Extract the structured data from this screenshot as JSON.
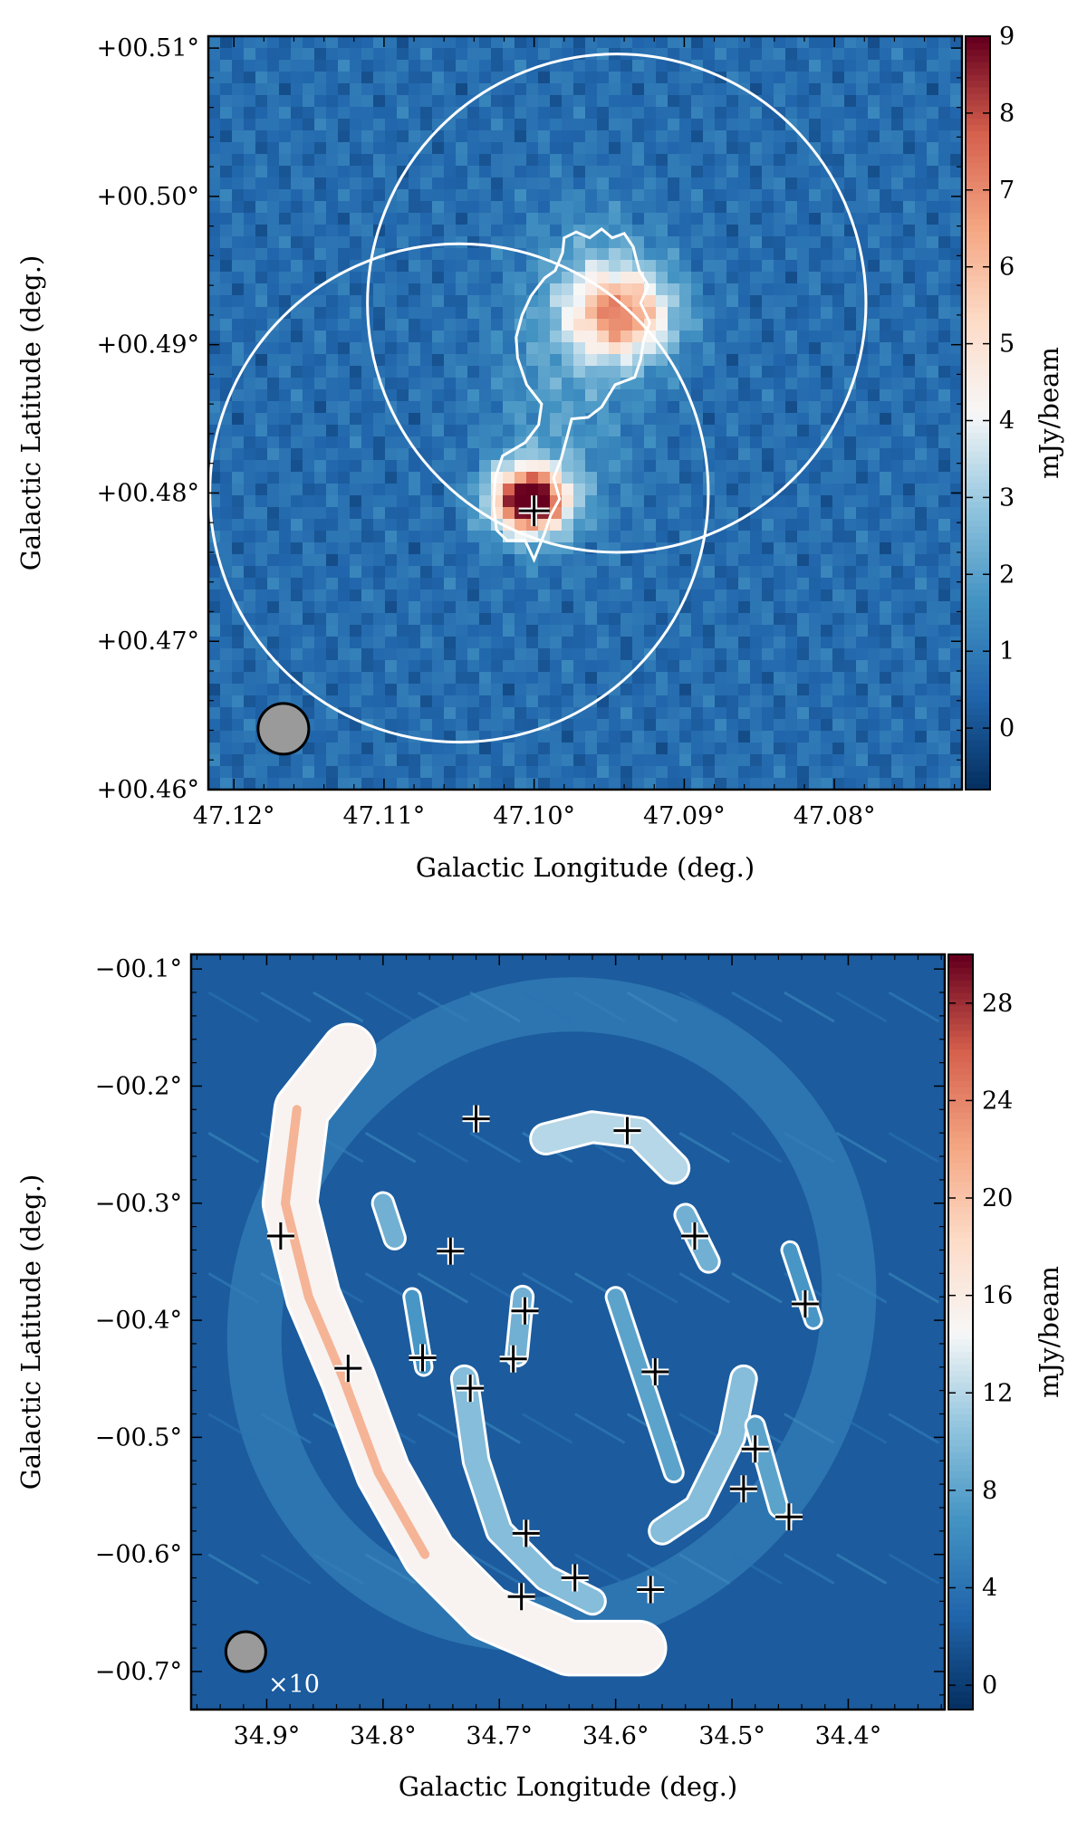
{
  "chart_data": [
    {
      "type": "heatmap",
      "panel": "top",
      "xlabel": "Galactic Longitude (deg.)",
      "ylabel": "Galactic Latitude (deg.)",
      "xlim": [
        47.1217,
        47.0715
      ],
      "ylim": [
        0.46,
        0.5108
      ],
      "xticks": [
        47.12,
        47.11,
        47.1,
        47.09,
        47.08
      ],
      "xtick_labels": [
        "47.12°",
        "47.11°",
        "47.10°",
        "47.09°",
        "47.08°"
      ],
      "yticks": [
        0.46,
        0.47,
        0.48,
        0.49,
        0.5,
        0.51
      ],
      "ytick_labels": [
        "+00.46°",
        "+00.47°",
        "+00.48°",
        "+00.49°",
        "+00.50°",
        "+00.51°"
      ],
      "colorbar": {
        "label": "mJy/beam",
        "range": [
          -0.8,
          9.0
        ],
        "ticks": [
          0,
          1,
          2,
          3,
          4,
          5,
          6,
          7,
          8,
          9
        ],
        "tick_labels": [
          "0",
          "1",
          "2",
          "3",
          "4",
          "5",
          "6",
          "7",
          "8",
          "9"
        ],
        "colormap": "RdBu_r"
      },
      "background_level": 0.6,
      "sources": [
        {
          "l": 47.0942,
          "b": 0.492,
          "peak": 6.0,
          "sigma_l": 0.0025,
          "sigma_b": 0.0022
        },
        {
          "l": 47.1003,
          "b": 0.4795,
          "peak": 9.5,
          "sigma_l": 0.0018,
          "sigma_b": 0.0016
        },
        {
          "l": 47.098,
          "b": 0.486,
          "peak": 1.2,
          "sigma_l": 0.0035,
          "sigma_b": 0.006
        },
        {
          "l": 47.096,
          "b": 0.496,
          "peak": 0.9,
          "sigma_l": 0.003,
          "sigma_b": 0.003
        }
      ],
      "circles": [
        {
          "l": 47.0945,
          "b": 0.4928,
          "r_deg": 0.0168
        },
        {
          "l": 47.105,
          "b": 0.48,
          "r_deg": 0.0168
        }
      ],
      "contour_outline": [
        [
          47.0972,
          0.4976
        ],
        [
          47.0963,
          0.4972
        ],
        [
          47.0955,
          0.4978
        ],
        [
          47.0948,
          0.4972
        ],
        [
          47.094,
          0.4975
        ],
        [
          47.0934,
          0.4966
        ],
        [
          47.093,
          0.495
        ],
        [
          47.0924,
          0.494
        ],
        [
          47.0929,
          0.4928
        ],
        [
          47.0923,
          0.4915
        ],
        [
          47.0927,
          0.4903
        ],
        [
          47.0929,
          0.489
        ],
        [
          47.0933,
          0.4878
        ],
        [
          47.0946,
          0.4873
        ],
        [
          47.0955,
          0.4858
        ],
        [
          47.0964,
          0.4851
        ],
        [
          47.0975,
          0.485
        ],
        [
          47.0978,
          0.4838
        ],
        [
          47.0982,
          0.4823
        ],
        [
          47.0987,
          0.481
        ],
        [
          47.0983,
          0.4796
        ],
        [
          47.0989,
          0.4785
        ],
        [
          47.0993,
          0.4773
        ],
        [
          47.1,
          0.4755
        ],
        [
          47.1006,
          0.4768
        ],
        [
          47.1018,
          0.4768
        ],
        [
          47.1025,
          0.4775
        ],
        [
          47.1027,
          0.4792
        ],
        [
          47.1026,
          0.481
        ],
        [
          47.1021,
          0.4825
        ],
        [
          47.1006,
          0.4834
        ],
        [
          47.0997,
          0.4846
        ],
        [
          47.0995,
          0.486
        ],
        [
          47.1005,
          0.4873
        ],
        [
          47.1011,
          0.4891
        ],
        [
          47.1012,
          0.4905
        ],
        [
          47.1008,
          0.492
        ],
        [
          47.1002,
          0.4933
        ],
        [
          47.0993,
          0.4945
        ],
        [
          47.0986,
          0.495
        ],
        [
          47.0981,
          0.4962
        ],
        [
          47.098,
          0.4972
        ]
      ],
      "markers": [
        {
          "l": 47.1,
          "b": 0.4788
        }
      ],
      "beam": {
        "l": 47.1167,
        "b": 0.4641
      }
    },
    {
      "type": "heatmap",
      "panel": "bottom",
      "xlabel": "Galactic Longitude (deg.)",
      "ylabel": "Galactic Latitude (deg.)",
      "xlim": [
        34.965,
        34.317
      ],
      "ylim": [
        -0.7325,
        -0.0875
      ],
      "xticks": [
        34.9,
        34.8,
        34.7,
        34.6,
        34.5,
        34.4
      ],
      "xtick_labels": [
        "34.9°",
        "34.8°",
        "34.7°",
        "34.6°",
        "34.5°",
        "34.4°"
      ],
      "yticks": [
        -0.1,
        -0.2,
        -0.3,
        -0.4,
        -0.5,
        -0.6,
        -0.7
      ],
      "ytick_labels": [
        "−00.1°",
        "−00.2°",
        "−00.3°",
        "−00.4°",
        "−00.5°",
        "−00.6°",
        "−00.7°"
      ],
      "colorbar": {
        "label": "mJy/beam",
        "range": [
          -1.0,
          30.0
        ],
        "ticks": [
          0,
          4,
          8,
          12,
          16,
          20,
          24,
          28
        ],
        "tick_labels": [
          "0",
          "4",
          "8",
          "12",
          "16",
          "20",
          "24",
          "28"
        ],
        "colormap": "RdBu_r"
      },
      "beam_label": "×10",
      "beam": {
        "l": 34.918,
        "b": -0.683
      },
      "shell": {
        "center_l": 34.655,
        "center_b": -0.395,
        "semi_axis_l": 0.25,
        "semi_axis_b": 0.27,
        "tilt_deg": 30
      },
      "filaments": [
        {
          "points": [
            [
              34.83,
              -0.17
            ],
            [
              34.87,
              -0.22
            ],
            [
              34.88,
              -0.3
            ],
            [
              34.86,
              -0.38
            ],
            [
              34.83,
              -0.45
            ],
            [
              34.8,
              -0.53
            ],
            [
              34.76,
              -0.6
            ],
            [
              34.71,
              -0.65
            ],
            [
              34.64,
              -0.68
            ],
            [
              34.58,
              -0.68
            ]
          ],
          "width": 0.022,
          "level": 15
        },
        {
          "points": [
            [
              34.66,
              -0.245
            ],
            [
              34.62,
              -0.235
            ],
            [
              34.58,
              -0.24
            ],
            [
              34.55,
              -0.27
            ]
          ],
          "width": 0.012,
          "level": 12
        },
        {
          "points": [
            [
              34.73,
              -0.45
            ],
            [
              34.72,
              -0.52
            ],
            [
              34.7,
              -0.58
            ],
            [
              34.66,
              -0.62
            ],
            [
              34.62,
              -0.64
            ]
          ],
          "width": 0.01,
          "level": 10
        },
        {
          "points": [
            [
              34.56,
              -0.58
            ],
            [
              34.53,
              -0.56
            ],
            [
              34.5,
              -0.5
            ],
            [
              34.49,
              -0.45
            ]
          ],
          "width": 0.01,
          "level": 10
        },
        {
          "points": [
            [
              34.6,
              -0.38
            ],
            [
              34.58,
              -0.44
            ],
            [
              34.55,
              -0.53
            ]
          ],
          "width": 0.007,
          "level": 8
        },
        {
          "points": [
            [
              34.68,
              -0.38
            ],
            [
              34.685,
              -0.43
            ]
          ],
          "width": 0.008,
          "level": 9
        },
        {
          "points": [
            [
              34.54,
              -0.31
            ],
            [
              34.52,
              -0.35
            ]
          ],
          "width": 0.008,
          "level": 9
        },
        {
          "points": [
            [
              34.45,
              -0.34
            ],
            [
              34.43,
              -0.4
            ]
          ],
          "width": 0.006,
          "level": 7
        },
        {
          "points": [
            [
              34.48,
              -0.49
            ],
            [
              34.46,
              -0.56
            ]
          ],
          "width": 0.007,
          "level": 8
        },
        {
          "points": [
            [
              34.8,
              -0.3
            ],
            [
              34.79,
              -0.33
            ]
          ],
          "width": 0.008,
          "level": 9
        },
        {
          "points": [
            [
              34.775,
              -0.38
            ],
            [
              34.765,
              -0.44
            ]
          ],
          "width": 0.006,
          "level": 7
        }
      ],
      "markers": [
        {
          "l": 34.72,
          "b": -0.228
        },
        {
          "l": 34.59,
          "b": -0.238
        },
        {
          "l": 34.888,
          "b": -0.328
        },
        {
          "l": 34.742,
          "b": -0.341
        },
        {
          "l": 34.532,
          "b": -0.328
        },
        {
          "l": 34.678,
          "b": -0.392
        },
        {
          "l": 34.437,
          "b": -0.386
        },
        {
          "l": 34.766,
          "b": -0.432
        },
        {
          "l": 34.688,
          "b": -0.433
        },
        {
          "l": 34.566,
          "b": -0.444
        },
        {
          "l": 34.83,
          "b": -0.441
        },
        {
          "l": 34.725,
          "b": -0.458
        },
        {
          "l": 34.48,
          "b": -0.51
        },
        {
          "l": 34.49,
          "b": -0.544
        },
        {
          "l": 34.451,
          "b": -0.568
        },
        {
          "l": 34.677,
          "b": -0.582
        },
        {
          "l": 34.635,
          "b": -0.62
        },
        {
          "l": 34.57,
          "b": -0.63
        },
        {
          "l": 34.681,
          "b": -0.636
        }
      ]
    }
  ]
}
